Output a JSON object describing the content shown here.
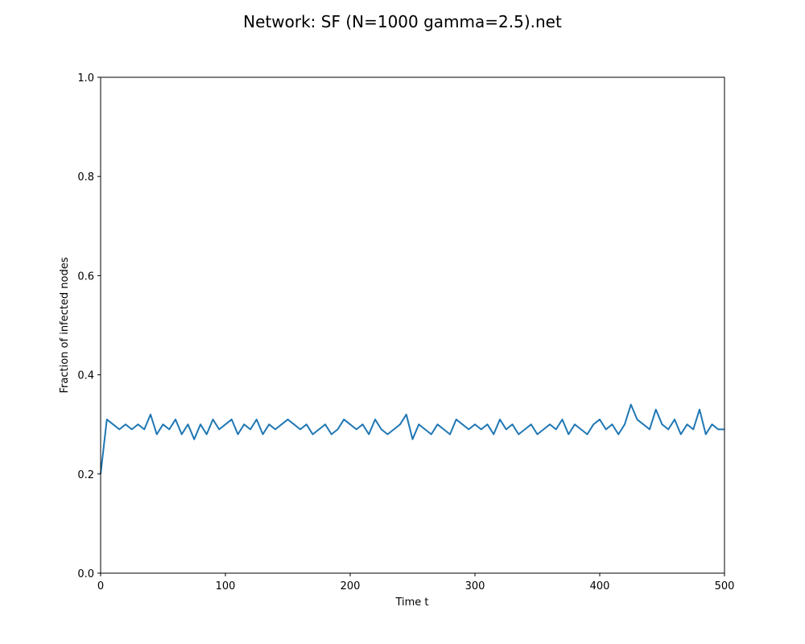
{
  "chart_data": {
    "type": "line",
    "title": "Network: SF (N=1000 gamma=2.5).net",
    "xlabel": "Time t",
    "ylabel": "Fraction of infected nodes",
    "x": [
      0,
      5,
      10,
      15,
      20,
      25,
      30,
      35,
      40,
      45,
      50,
      55,
      60,
      65,
      70,
      75,
      80,
      85,
      90,
      95,
      100,
      105,
      110,
      115,
      120,
      125,
      130,
      135,
      140,
      145,
      150,
      155,
      160,
      165,
      170,
      175,
      180,
      185,
      190,
      195,
      200,
      205,
      210,
      215,
      220,
      225,
      230,
      235,
      240,
      245,
      250,
      255,
      260,
      265,
      270,
      275,
      280,
      285,
      290,
      295,
      300,
      305,
      310,
      315,
      320,
      325,
      330,
      335,
      340,
      345,
      350,
      355,
      360,
      365,
      370,
      375,
      380,
      385,
      390,
      395,
      400,
      405,
      410,
      415,
      420,
      425,
      430,
      435,
      440,
      445,
      450,
      455,
      460,
      465,
      470,
      475,
      480,
      485,
      490,
      495,
      500
    ],
    "values": [
      0.2,
      0.31,
      0.3,
      0.29,
      0.3,
      0.29,
      0.3,
      0.29,
      0.32,
      0.28,
      0.3,
      0.29,
      0.31,
      0.28,
      0.3,
      0.27,
      0.3,
      0.28,
      0.31,
      0.29,
      0.3,
      0.31,
      0.28,
      0.3,
      0.29,
      0.31,
      0.28,
      0.3,
      0.29,
      0.3,
      0.31,
      0.3,
      0.29,
      0.3,
      0.28,
      0.29,
      0.3,
      0.28,
      0.29,
      0.31,
      0.3,
      0.29,
      0.3,
      0.28,
      0.31,
      0.29,
      0.28,
      0.29,
      0.3,
      0.32,
      0.27,
      0.3,
      0.29,
      0.28,
      0.3,
      0.29,
      0.28,
      0.31,
      0.3,
      0.29,
      0.3,
      0.29,
      0.3,
      0.28,
      0.31,
      0.29,
      0.3,
      0.28,
      0.29,
      0.3,
      0.28,
      0.29,
      0.3,
      0.29,
      0.31,
      0.28,
      0.3,
      0.29,
      0.28,
      0.3,
      0.31,
      0.29,
      0.3,
      0.28,
      0.3,
      0.34,
      0.31,
      0.3,
      0.29,
      0.33,
      0.3,
      0.29,
      0.31,
      0.28,
      0.3,
      0.29,
      0.33,
      0.28,
      0.3,
      0.29,
      0.29
    ],
    "color": "#1f77b4",
    "xlim": [
      0,
      500
    ],
    "xticks": [
      0,
      100,
      200,
      300,
      400,
      500
    ],
    "ylim": [
      0,
      1
    ],
    "yticks": [
      {
        "value": 0,
        "label": "0.0"
      },
      0.2,
      0.4,
      0.6,
      0.8,
      {
        "value": 1,
        "label": "1.0"
      }
    ],
    "grid": false
  }
}
